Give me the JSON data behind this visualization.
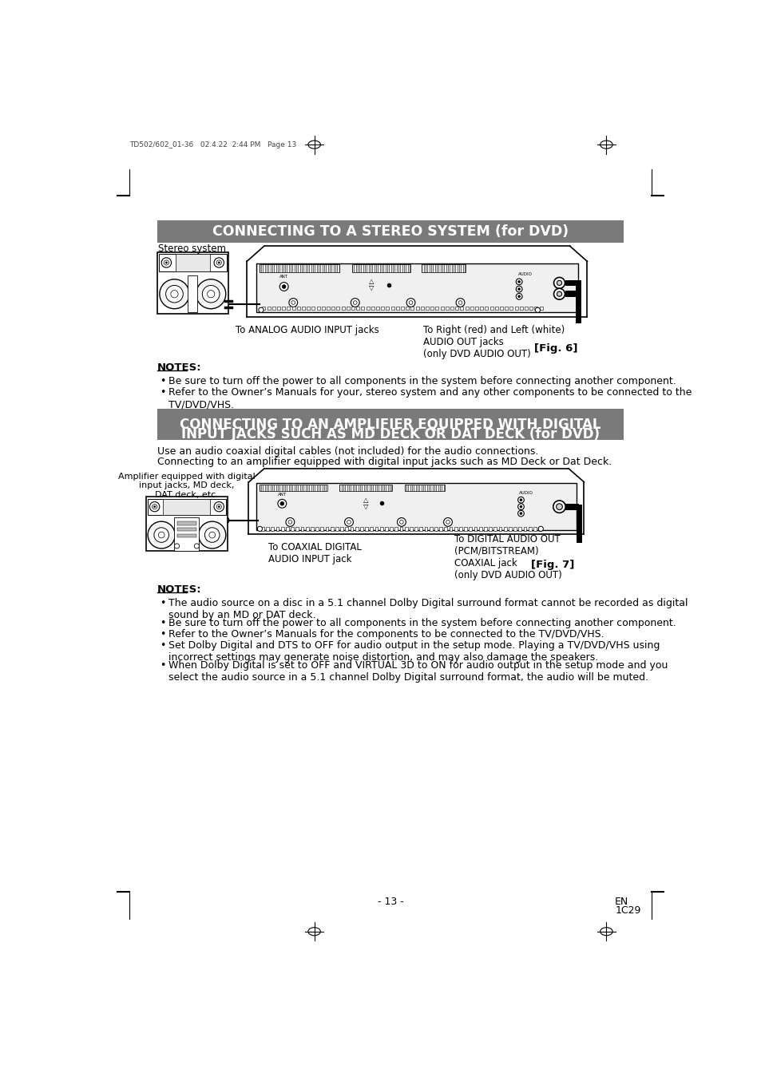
{
  "page_header_text": "TD502/602_01-36   02.4.22  2:44 PM   Page 13",
  "title1": "CONNECTING TO A STEREO SYSTEM (for DVD)",
  "title1_bg": "#7a7a7a",
  "title1_fg": "#ffffff",
  "fig1_label": "[Fig. 6]",
  "stereo_label": "Stereo system",
  "analog_label": "To ANALOG AUDIO INPUT jacks",
  "right_left_label": "To Right (red) and Left (white)\nAUDIO OUT jacks\n(only DVD AUDIO OUT)",
  "notes1_header": "NOTES:",
  "notes1_bullets": [
    "Be sure to turn off the power to all components in the system before connecting another component.",
    "Refer to the Owner’s Manuals for your, stereo system and any other components to be connected to the\nTV/DVD/VHS."
  ],
  "title2_line1": "CONNECTING TO AN AMPLIFIER EQUIPPED WITH DIGITAL",
  "title2_line2": "INPUT JACKS SUCH AS MD DECK OR DAT DECK (for DVD)",
  "title2_bg": "#7a7a7a",
  "title2_fg": "#ffffff",
  "intro_text1": "Use an audio coaxial digital cables (not included) for the audio connections.",
  "intro_text2": "Connecting to an amplifier equipped with digital input jacks such as MD Deck or Dat Deck.",
  "fig2_label": "[Fig. 7]",
  "amp_label": "Amplifier equipped with digital\ninput jacks, MD deck,\nDAT deck, etc.",
  "coaxial_label": "To COAXIAL DIGITAL\nAUDIO INPUT jack",
  "digital_label": "To DIGITAL AUDIO OUT\n(PCM/BITSTREAM)\nCOAXIAL jack\n(only DVD AUDIO OUT)",
  "notes2_header": "NOTES:",
  "notes2_bullets": [
    "The audio source on a disc in a 5.1 channel Dolby Digital surround format cannot be recorded as digital\nsound by an MD or DAT deck.",
    "Be sure to turn off the power to all components in the system before connecting another component.",
    "Refer to the Owner’s Manuals for the components to be connected to the TV/DVD/VHS.",
    "Set Dolby Digital and DTS to OFF for audio output in the setup mode. Playing a TV/DVD/VHS using\nincorrect settings may generate noise distortion, and may also damage the speakers.",
    "When Dolby Digital is set to OFF and VIRTUAL 3D to ON for audio output in the setup mode and you\nselect the audio source in a 5.1 channel Dolby Digital surround format, the audio will be muted."
  ],
  "page_number": "- 13 -",
  "page_en": "EN",
  "page_code": "1C29",
  "bg_color": "#ffffff"
}
